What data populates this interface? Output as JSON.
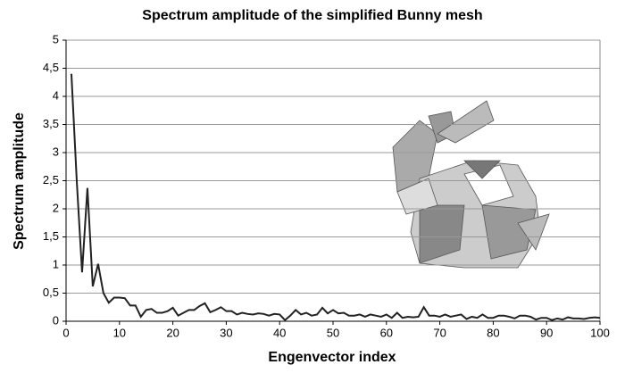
{
  "chart_data": {
    "type": "line",
    "title": "Spectrum amplitude of the simplified Bunny mesh",
    "x_label": "Engenvector index",
    "y_label": "Spectrum amplitude",
    "x": [
      1,
      2,
      3,
      4,
      5,
      6,
      7,
      8,
      9,
      10,
      11,
      12,
      13,
      14,
      15,
      16,
      17,
      18,
      19,
      20,
      21,
      22,
      23,
      24,
      25,
      26,
      27,
      28,
      29,
      30,
      31,
      32,
      33,
      34,
      35,
      36,
      37,
      38,
      39,
      40,
      41,
      42,
      43,
      44,
      45,
      46,
      47,
      48,
      49,
      50,
      51,
      52,
      53,
      54,
      55,
      56,
      57,
      58,
      59,
      60,
      61,
      62,
      63,
      64,
      65,
      66,
      67,
      68,
      69,
      70,
      71,
      72,
      73,
      74,
      75,
      76,
      77,
      78,
      79,
      80,
      81,
      82,
      83,
      84,
      85,
      86,
      87,
      88,
      89,
      90,
      91,
      92,
      93,
      94,
      95,
      96,
      97,
      98,
      99,
      100
    ],
    "series": [
      {
        "name": "Spectrum amplitude",
        "color": "#222222",
        "values": [
          4.4,
          2.5,
          0.87,
          2.37,
          0.62,
          1.02,
          0.5,
          0.33,
          0.42,
          0.42,
          0.41,
          0.28,
          0.28,
          0.08,
          0.2,
          0.22,
          0.15,
          0.15,
          0.18,
          0.24,
          0.1,
          0.15,
          0.2,
          0.2,
          0.27,
          0.32,
          0.16,
          0.2,
          0.25,
          0.18,
          0.18,
          0.12,
          0.15,
          0.13,
          0.12,
          0.14,
          0.13,
          0.1,
          0.13,
          0.12,
          0.02,
          0.1,
          0.2,
          0.12,
          0.15,
          0.1,
          0.12,
          0.24,
          0.14,
          0.2,
          0.14,
          0.15,
          0.1,
          0.1,
          0.12,
          0.08,
          0.12,
          0.1,
          0.08,
          0.12,
          0.06,
          0.15,
          0.06,
          0.08,
          0.07,
          0.08,
          0.25,
          0.1,
          0.1,
          0.08,
          0.12,
          0.08,
          0.1,
          0.12,
          0.04,
          0.08,
          0.06,
          0.12,
          0.06,
          0.06,
          0.1,
          0.1,
          0.08,
          0.05,
          0.1,
          0.1,
          0.08,
          0.03,
          0.06,
          0.06,
          0.02,
          0.05,
          0.03,
          0.07,
          0.05,
          0.05,
          0.04,
          0.06,
          0.07,
          0.06
        ]
      }
    ],
    "xlim": [
      0,
      100
    ],
    "xticks": [
      0,
      10,
      20,
      30,
      40,
      50,
      60,
      70,
      80,
      90,
      100
    ],
    "ylim": [
      0,
      5
    ],
    "yticks": [
      0,
      {
        "value": 0.5,
        "label": "0,5"
      },
      1,
      {
        "value": 1.5,
        "label": "1,5"
      },
      2,
      {
        "value": 2.5,
        "label": "2,5"
      },
      3,
      {
        "value": 3.5,
        "label": "3,5"
      },
      4,
      {
        "value": 4.5,
        "label": "4,5"
      },
      5
    ],
    "grid": true
  }
}
